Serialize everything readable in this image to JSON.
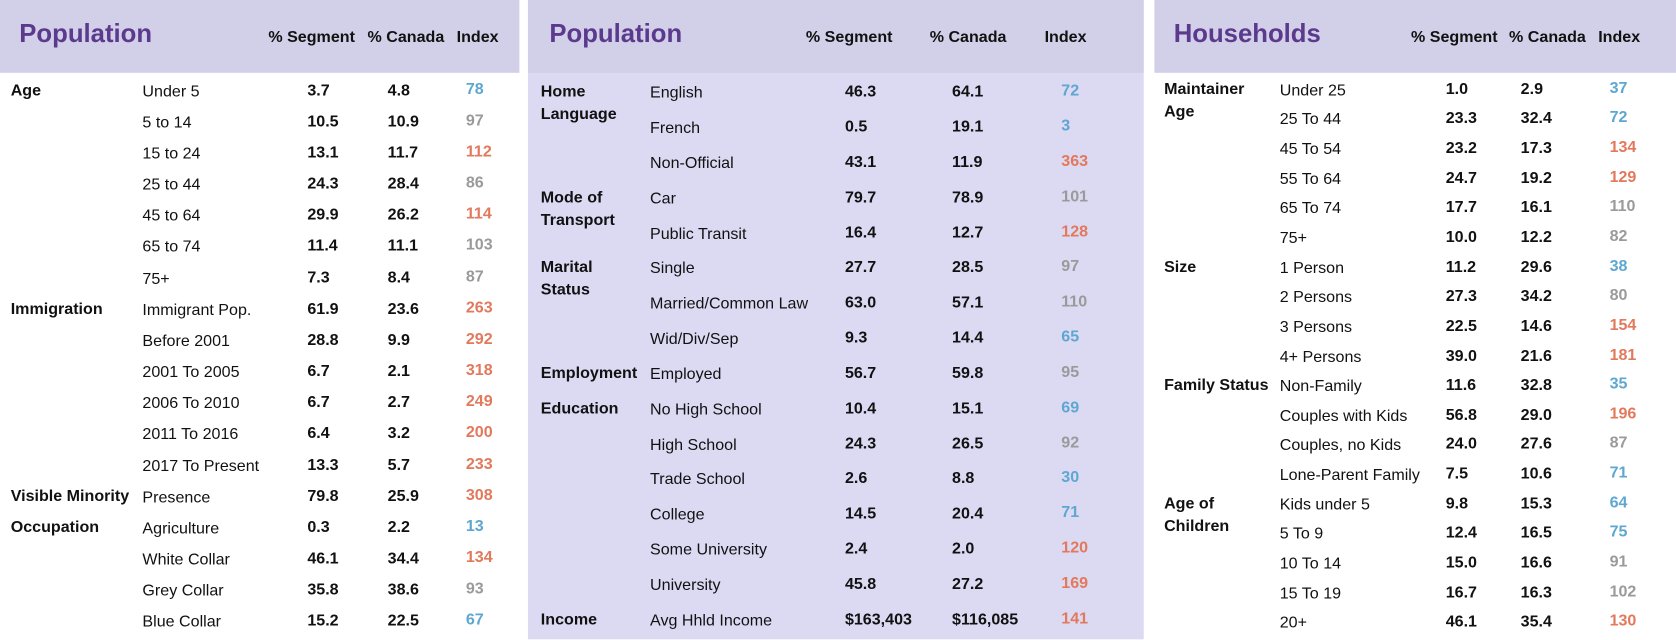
{
  "panels": [
    {
      "title": "Population",
      "headers": [
        "% Segment",
        "% Canada",
        "Index"
      ],
      "groups": [
        {
          "label": [
            "Age"
          ],
          "rows": [
            {
              "label": "Under 5",
              "segment": "3.7",
              "canada": "4.8",
              "index": "78"
            },
            {
              "label": "5 to 14",
              "segment": "10.5",
              "canada": "10.9",
              "index": "97"
            },
            {
              "label": "15 to 24",
              "segment": "13.1",
              "canada": "11.7",
              "index": "112"
            },
            {
              "label": "25 to 44",
              "segment": "24.3",
              "canada": "28.4",
              "index": "86"
            },
            {
              "label": "45 to 64",
              "segment": "29.9",
              "canada": "26.2",
              "index": "114"
            },
            {
              "label": "65 to 74",
              "segment": "11.4",
              "canada": "11.1",
              "index": "103"
            },
            {
              "label": "75+",
              "segment": "7.3",
              "canada": "8.4",
              "index": "87"
            }
          ]
        },
        {
          "label": [
            "Immigration"
          ],
          "rows": [
            {
              "label": "Immigrant Pop.",
              "segment": "61.9",
              "canada": "23.6",
              "index": "263"
            },
            {
              "label": "Before 2001",
              "segment": "28.8",
              "canada": "9.9",
              "index": "292"
            },
            {
              "label": "2001 To 2005",
              "segment": "6.7",
              "canada": "2.1",
              "index": "318"
            },
            {
              "label": "2006 To 2010",
              "segment": "6.7",
              "canada": "2.7",
              "index": "249"
            },
            {
              "label": "2011 To 2016",
              "segment": "6.4",
              "canada": "3.2",
              "index": "200"
            },
            {
              "label": "2017 To Present",
              "segment": "13.3",
              "canada": "5.7",
              "index": "233"
            }
          ]
        },
        {
          "label": [
            "Visible Minority"
          ],
          "rows": [
            {
              "label": "Presence",
              "segment": "79.8",
              "canada": "25.9",
              "index": "308"
            }
          ]
        },
        {
          "label": [
            "Occupation"
          ],
          "rows": [
            {
              "label": "Agriculture",
              "segment": "0.3",
              "canada": "2.2",
              "index": "13"
            },
            {
              "label": "White Collar",
              "segment": "46.1",
              "canada": "34.4",
              "index": "134"
            },
            {
              "label": "Grey Collar",
              "segment": "35.8",
              "canada": "38.6",
              "index": "93"
            },
            {
              "label": "Blue Collar",
              "segment": "15.2",
              "canada": "22.5",
              "index": "67"
            }
          ]
        }
      ]
    },
    {
      "title": "Population",
      "headers": [
        "% Segment",
        "% Canada",
        "Index"
      ],
      "groups": [
        {
          "label": [
            "Home",
            "Language"
          ],
          "rows": [
            {
              "label": "English",
              "segment": "46.3",
              "canada": "64.1",
              "index": "72"
            },
            {
              "label": "French",
              "segment": "0.5",
              "canada": "19.1",
              "index": "3"
            },
            {
              "label": "Non-Official",
              "segment": "43.1",
              "canada": "11.9",
              "index": "363"
            }
          ]
        },
        {
          "label": [
            "Mode of",
            "Transport"
          ],
          "rows": [
            {
              "label": "Car",
              "segment": "79.7",
              "canada": "78.9",
              "index": "101"
            },
            {
              "label": "Public Transit",
              "segment": "16.4",
              "canada": "12.7",
              "index": "128"
            }
          ]
        },
        {
          "label": [
            "Marital",
            "Status"
          ],
          "rows": [
            {
              "label": "Single",
              "segment": "27.7",
              "canada": "28.5",
              "index": "97"
            },
            {
              "label": "Married/Common Law",
              "segment": "63.0",
              "canada": "57.1",
              "index": "110"
            },
            {
              "label": "Wid/Div/Sep",
              "segment": "9.3",
              "canada": "14.4",
              "index": "65"
            }
          ]
        },
        {
          "label": [
            "Employment"
          ],
          "rows": [
            {
              "label": "Employed",
              "segment": "56.7",
              "canada": "59.8",
              "index": "95"
            }
          ]
        },
        {
          "label": [
            "Education"
          ],
          "rows": [
            {
              "label": "No High School",
              "segment": "10.4",
              "canada": "15.1",
              "index": "69"
            },
            {
              "label": "High School",
              "segment": "24.3",
              "canada": "26.5",
              "index": "92"
            },
            {
              "label": "Trade School",
              "segment": "2.6",
              "canada": "8.8",
              "index": "30"
            },
            {
              "label": "College",
              "segment": "14.5",
              "canada": "20.4",
              "index": "71"
            },
            {
              "label": "Some University",
              "segment": "2.4",
              "canada": "2.0",
              "index": "120"
            },
            {
              "label": "University",
              "segment": "45.8",
              "canada": "27.2",
              "index": "169"
            }
          ]
        },
        {
          "label": [
            "Income"
          ],
          "rows": [
            {
              "label": "Avg Hhld Income",
              "segment": "$163,403",
              "canada": "$116,085",
              "index": "141"
            }
          ]
        }
      ]
    },
    {
      "title": "Households",
      "headers": [
        "% Segment",
        "% Canada",
        "Index"
      ],
      "groups": [
        {
          "label": [
            "Maintainer",
            "Age"
          ],
          "rows": [
            {
              "label": "Under 25",
              "segment": "1.0",
              "canada": "2.9",
              "index": "37"
            },
            {
              "label": "25 To 44",
              "segment": "23.3",
              "canada": "32.4",
              "index": "72"
            },
            {
              "label": "45 To 54",
              "segment": "23.2",
              "canada": "17.3",
              "index": "134"
            },
            {
              "label": "55 To 64",
              "segment": "24.7",
              "canada": "19.2",
              "index": "129"
            },
            {
              "label": "65 To 74",
              "segment": "17.7",
              "canada": "16.1",
              "index": "110"
            },
            {
              "label": "75+",
              "segment": "10.0",
              "canada": "12.2",
              "index": "82"
            }
          ]
        },
        {
          "label": [
            "Size"
          ],
          "rows": [
            {
              "label": "1 Person",
              "segment": "11.2",
              "canada": "29.6",
              "index": "38"
            },
            {
              "label": "2 Persons",
              "segment": "27.3",
              "canada": "34.2",
              "index": "80"
            },
            {
              "label": "3 Persons",
              "segment": "22.5",
              "canada": "14.6",
              "index": "154"
            },
            {
              "label": "4+ Persons",
              "segment": "39.0",
              "canada": "21.6",
              "index": "181"
            }
          ]
        },
        {
          "label": [
            "Family Status"
          ],
          "rows": [
            {
              "label": "Non-Family",
              "segment": "11.6",
              "canada": "32.8",
              "index": "35"
            },
            {
              "label": "Couples with Kids",
              "segment": "56.8",
              "canada": "29.0",
              "index": "196"
            },
            {
              "label": "Couples, no Kids",
              "segment": "24.0",
              "canada": "27.6",
              "index": "87"
            },
            {
              "label": "Lone-Parent Family",
              "segment": "7.5",
              "canada": "10.6",
              "index": "71"
            }
          ]
        },
        {
          "label": [
            "Age of",
            "Children"
          ],
          "rows": [
            {
              "label": "Kids under 5",
              "segment": "9.8",
              "canada": "15.3",
              "index": "64"
            },
            {
              "label": "5 To 9",
              "segment": "12.4",
              "canada": "16.5",
              "index": "75"
            },
            {
              "label": "10 To 14",
              "segment": "15.0",
              "canada": "16.6",
              "index": "91"
            },
            {
              "label": "15 To 19",
              "segment": "16.7",
              "canada": "16.3",
              "index": "102"
            },
            {
              "label": "20+",
              "segment": "46.1",
              "canada": "35.4",
              "index": "130"
            }
          ]
        }
      ]
    }
  ]
}
